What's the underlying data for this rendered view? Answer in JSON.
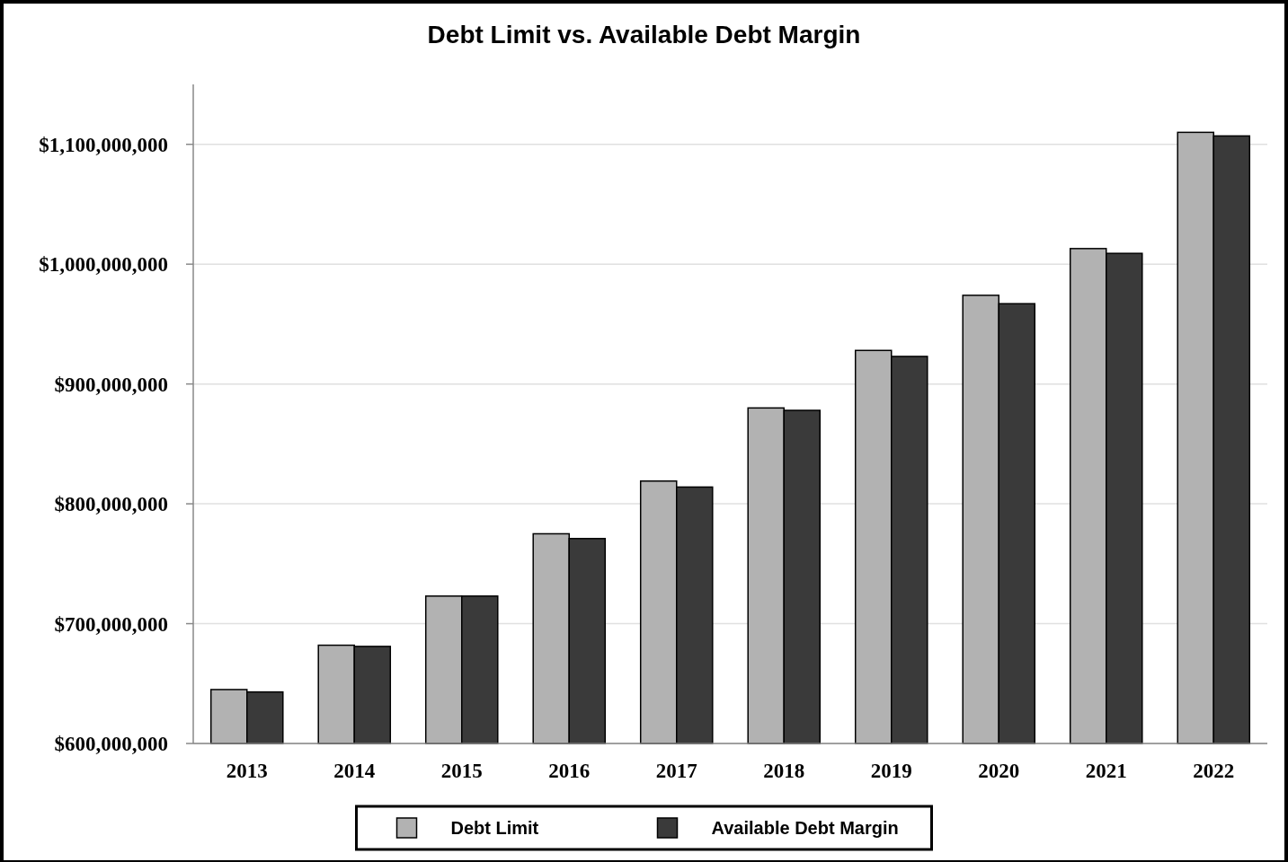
{
  "chart_data": {
    "type": "bar",
    "title": "Debt Limit vs. Available Debt Margin",
    "categories": [
      "2013",
      "2014",
      "2015",
      "2016",
      "2017",
      "2018",
      "2019",
      "2020",
      "2021",
      "2022"
    ],
    "series": [
      {
        "name": "Debt Limit",
        "color": "#b2b2b2",
        "values": [
          645000000,
          682000000,
          723000000,
          775000000,
          819000000,
          880000000,
          928000000,
          974000000,
          1013000000,
          1110000000
        ]
      },
      {
        "name": "Available Debt Margin",
        "color": "#3a3a3a",
        "values": [
          643000000,
          681000000,
          723000000,
          771000000,
          814000000,
          878000000,
          923000000,
          967000000,
          1009000000,
          1107000000
        ]
      }
    ],
    "ylim": [
      600000000,
      1150000000
    ],
    "yticks": [
      {
        "value": 600000000,
        "label": "$600,000,000"
      },
      {
        "value": 700000000,
        "label": "$700,000,000"
      },
      {
        "value": 800000000,
        "label": "$800,000,000"
      },
      {
        "value": 900000000,
        "label": "$900,000,000"
      },
      {
        "value": 1000000000,
        "label": "$1,000,000,000"
      },
      {
        "value": 1100000000,
        "label": "$1,100,000,000"
      }
    ],
    "grid": "y",
    "legend": "bottom"
  }
}
